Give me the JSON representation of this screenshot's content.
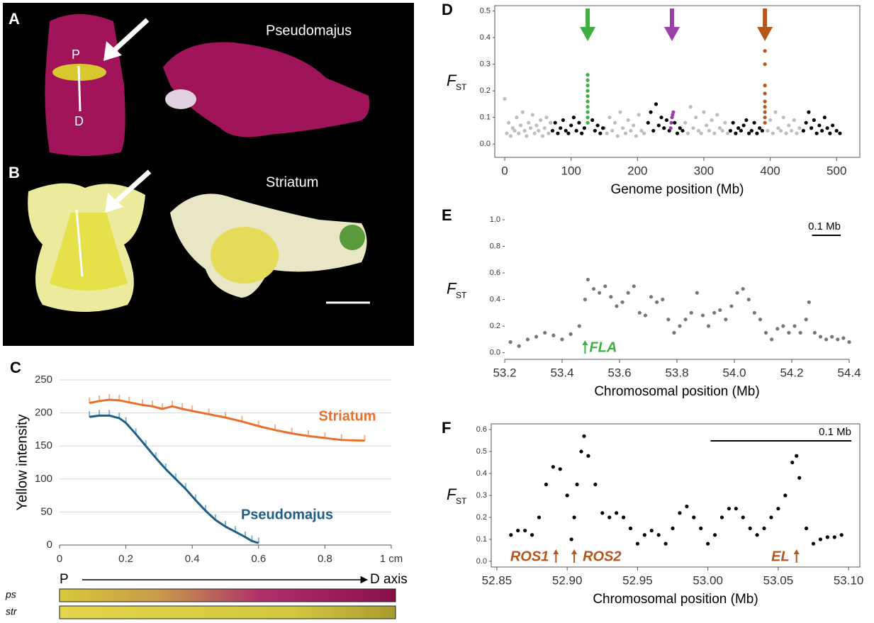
{
  "photo": {
    "panels": [
      "A",
      "B"
    ],
    "names": [
      "Pseudomajus",
      "Striatum"
    ],
    "axis_labels": [
      "P",
      "D"
    ]
  },
  "chart_data": [
    {
      "type": "line",
      "panel": "C",
      "ylabel": "Yellow intensity",
      "xlim": [
        0,
        1
      ],
      "ylim": [
        0,
        250
      ],
      "xticks": [
        0,
        0.2,
        0.4,
        0.6,
        0.8,
        {
          "value": 1,
          "label": "1 cm"
        }
      ],
      "yticks": [
        0,
        50,
        100,
        150,
        200,
        250
      ],
      "grid": true,
      "series": [
        {
          "name": "Striatum",
          "color": "#e8702f",
          "x": [
            0.09,
            0.12,
            0.15,
            0.18,
            0.21,
            0.25,
            0.28,
            0.31,
            0.34,
            0.37,
            0.4,
            0.45,
            0.5,
            0.55,
            0.6,
            0.65,
            0.7,
            0.75,
            0.8,
            0.85,
            0.92
          ],
          "values": [
            215,
            218,
            220,
            219,
            216,
            212,
            210,
            206,
            210,
            206,
            203,
            198,
            193,
            187,
            180,
            174,
            169,
            165,
            162,
            159,
            158
          ]
        },
        {
          "name": "Pseudomajus",
          "color": "#1f5f86",
          "x": [
            0.09,
            0.12,
            0.15,
            0.18,
            0.2,
            0.23,
            0.26,
            0.29,
            0.32,
            0.35,
            0.38,
            0.41,
            0.44,
            0.47,
            0.5,
            0.53,
            0.56,
            0.58,
            0.6
          ],
          "values": [
            194,
            196,
            196,
            192,
            185,
            168,
            150,
            132,
            115,
            100,
            85,
            68,
            52,
            38,
            28,
            20,
            12,
            6,
            3
          ]
        }
      ],
      "axis_strip": {
        "start": "P",
        "end": "D axis",
        "rows": [
          "ps",
          "str"
        ]
      }
    },
    {
      "type": "scatter",
      "panel": "D",
      "xlabel": "Genome position (Mb)",
      "ylabel": "F",
      "ylabel_sub": "ST",
      "xlim": [
        -15,
        535
      ],
      "ylim": [
        -0.05,
        0.52
      ],
      "xticks": [
        0,
        100,
        200,
        300,
        400,
        500
      ],
      "yticks": [
        {
          "value": 0,
          "label": "0.0"
        },
        0.1,
        0.2,
        0.3,
        0.4,
        0.5
      ],
      "series": [
        {
          "color": "#bdbdbd",
          "x": [
            0,
            3,
            6,
            9,
            12,
            15,
            18,
            21,
            24,
            27,
            30,
            33,
            36,
            39,
            42,
            45,
            48,
            51,
            54,
            57,
            60,
            63,
            66,
            69,
            150,
            154,
            158,
            162,
            166,
            170,
            174,
            178,
            182,
            186,
            190,
            194,
            198,
            202,
            206,
            210,
            272,
            276,
            280,
            284,
            288,
            292,
            296,
            300,
            304,
            308,
            312,
            316,
            320,
            324,
            328,
            332,
            336,
            396,
            400,
            404,
            408,
            412,
            416,
            420,
            424,
            428,
            432,
            436,
            440,
            444
          ],
          "values": [
            0.17,
            0.04,
            0.08,
            0.03,
            0.06,
            0.05,
            0.1,
            0.04,
            0.07,
            0.12,
            0.05,
            0.03,
            0.08,
            0.06,
            0.11,
            0.04,
            0.07,
            0.05,
            0.09,
            0.03,
            0.06,
            0.1,
            0.04,
            0.08,
            0.06,
            0.04,
            0.1,
            0.05,
            0.08,
            0.03,
            0.12,
            0.06,
            0.04,
            0.09,
            0.05,
            0.07,
            0.03,
            0.11,
            0.05,
            0.04,
            0.08,
            0.04,
            0.14,
            0.06,
            0.1,
            0.05,
            0.04,
            0.12,
            0.07,
            0.05,
            0.09,
            0.04,
            0.11,
            0.06,
            0.05,
            0.08,
            0.04,
            0.05,
            0.09,
            0.04,
            0.12,
            0.06,
            0.05,
            0.1,
            0.04,
            0.07,
            0.05,
            0.09,
            0.04,
            0.06
          ]
        },
        {
          "color": "#000000",
          "x": [
            72,
            76,
            80,
            84,
            88,
            92,
            96,
            100,
            104,
            108,
            112,
            116,
            120,
            132,
            136,
            140,
            144,
            148,
            216,
            220,
            224,
            228,
            232,
            236,
            240,
            244,
            248,
            256,
            260,
            264,
            268,
            340,
            344,
            348,
            352,
            356,
            360,
            364,
            368,
            372,
            376,
            380,
            384,
            388,
            450,
            454,
            458,
            462,
            466,
            470,
            474,
            478,
            482,
            486,
            490,
            494,
            500,
            505
          ],
          "values": [
            0.05,
            0.08,
            0.04,
            0.06,
            0.09,
            0.05,
            0.04,
            0.07,
            0.1,
            0.05,
            0.08,
            0.04,
            0.06,
            0.09,
            0.05,
            0.07,
            0.04,
            0.06,
            0.08,
            0.12,
            0.05,
            0.15,
            0.07,
            0.1,
            0.06,
            0.09,
            0.05,
            0.08,
            0.04,
            0.06,
            0.05,
            0.05,
            0.08,
            0.04,
            0.06,
            0.05,
            0.07,
            0.09,
            0.04,
            0.05,
            0.08,
            0.04,
            0.06,
            0.05,
            0.05,
            0.08,
            0.12,
            0.06,
            0.09,
            0.04,
            0.07,
            0.05,
            0.1,
            0.06,
            0.04,
            0.07,
            0.05,
            0.04
          ]
        },
        {
          "color": "#3cb043",
          "x": [
            125,
            125,
            125,
            125,
            125,
            125,
            125,
            125,
            125,
            125
          ],
          "values": [
            0.26,
            0.24,
            0.22,
            0.2,
            0.18,
            0.16,
            0.14,
            0.12,
            0.1,
            0.08
          ]
        },
        {
          "color": "#9b3fa8",
          "x": [
            250,
            251,
            252,
            253,
            254
          ],
          "values": [
            0.06,
            0.08,
            0.1,
            0.11,
            0.12
          ]
        },
        {
          "color": "#b5561c",
          "x": [
            392,
            392,
            392,
            392,
            392,
            392,
            392,
            392,
            392
          ],
          "values": [
            0.35,
            0.3,
            0.22,
            0.19,
            0.16,
            0.14,
            0.12,
            0.1,
            0.08
          ]
        }
      ],
      "arrows": [
        {
          "x": 125,
          "color": "#3cb043"
        },
        {
          "x": 252,
          "color": "#9b3fa8"
        },
        {
          "x": 392,
          "color": "#b5561c"
        }
      ]
    },
    {
      "type": "scatter",
      "panel": "E",
      "xlabel": "Chromosomal position (Mb)",
      "ylabel": "F",
      "ylabel_sub": "ST",
      "xlim": [
        53.2,
        54.4
      ],
      "ylim": [
        -0.05,
        1.0
      ],
      "xticks": [
        53.2,
        53.4,
        53.6,
        53.8,
        {
          "value": 54,
          "label": "54.0"
        },
        54.2,
        54.4
      ],
      "yticks": [
        {
          "value": 0,
          "label": "0.0"
        },
        0.2,
        0.4,
        0.6,
        0.8,
        {
          "value": 1,
          "label": "1.0"
        }
      ],
      "scale_bar": {
        "label": "0.1 Mb",
        "length": 0.1
      },
      "annotations": [
        {
          "text": "FLA",
          "x": 53.48,
          "color": "#3cb043"
        }
      ],
      "series": [
        {
          "color": "#777777",
          "x": [
            53.22,
            53.25,
            53.28,
            53.31,
            53.34,
            53.37,
            53.4,
            53.43,
            53.46,
            53.48,
            53.49,
            53.51,
            53.53,
            53.55,
            53.57,
            53.59,
            53.61,
            53.63,
            53.65,
            53.67,
            53.69,
            53.71,
            53.73,
            53.75,
            53.77,
            53.79,
            53.81,
            53.83,
            53.85,
            53.87,
            53.89,
            53.91,
            53.93,
            53.95,
            53.97,
            53.99,
            54.01,
            54.03,
            54.05,
            54.07,
            54.09,
            54.11,
            54.13,
            54.15,
            54.17,
            54.19,
            54.21,
            54.23,
            54.25,
            54.26,
            54.28,
            54.3,
            54.32,
            54.34,
            54.36,
            54.38,
            54.4
          ],
          "values": [
            0.08,
            0.05,
            0.1,
            0.12,
            0.15,
            0.13,
            0.1,
            0.14,
            0.2,
            0.4,
            0.55,
            0.48,
            0.45,
            0.5,
            0.42,
            0.35,
            0.38,
            0.45,
            0.5,
            0.3,
            0.28,
            0.42,
            0.38,
            0.4,
            0.25,
            0.15,
            0.2,
            0.25,
            0.3,
            0.45,
            0.28,
            0.2,
            0.3,
            0.32,
            0.25,
            0.35,
            0.45,
            0.48,
            0.4,
            0.3,
            0.25,
            0.15,
            0.1,
            0.18,
            0.2,
            0.15,
            0.2,
            0.15,
            0.25,
            0.38,
            0.15,
            0.12,
            0.1,
            0.12,
            0.1,
            0.11,
            0.08
          ]
        }
      ]
    },
    {
      "type": "scatter",
      "panel": "F",
      "xlabel": "Chromosomal position (Mb)",
      "ylabel": "F",
      "ylabel_sub": "ST",
      "xlim": [
        52.846,
        53.108
      ],
      "ylim": [
        -0.026,
        0.626
      ],
      "xticks": [
        52.85,
        {
          "value": 52.9,
          "label": "52.90"
        },
        52.95,
        {
          "value": 53,
          "label": "53.00"
        },
        53.05,
        {
          "value": 53.1,
          "label": "53.10"
        }
      ],
      "yticks": [
        {
          "value": 0,
          "label": "0.0"
        },
        0.1,
        0.2,
        0.3,
        0.4,
        0.5,
        0.6
      ],
      "scale_bar": {
        "label": "0.1 Mb",
        "length": 0.1
      },
      "annotations": [
        {
          "text": "ROS1",
          "x": 52.892,
          "color": "#b5561c"
        },
        {
          "text": "ROS2",
          "x": 52.905,
          "color": "#b5561c"
        },
        {
          "text": "EL",
          "x": 53.063,
          "color": "#b5561c"
        }
      ],
      "series": [
        {
          "color": "#000000",
          "x": [
            52.86,
            52.865,
            52.87,
            52.875,
            52.88,
            52.885,
            52.89,
            52.895,
            52.9,
            52.903,
            52.905,
            52.907,
            52.91,
            52.912,
            52.915,
            52.92,
            52.925,
            52.93,
            52.935,
            52.94,
            52.945,
            52.95,
            52.955,
            52.96,
            52.965,
            52.97,
            52.975,
            52.98,
            52.985,
            52.99,
            52.995,
            53.0,
            53.005,
            53.01,
            53.015,
            53.02,
            53.025,
            53.03,
            53.035,
            53.04,
            53.045,
            53.05,
            53.055,
            53.06,
            53.063,
            53.065,
            53.07,
            53.075,
            53.08,
            53.085,
            53.09,
            53.095
          ],
          "values": [
            0.12,
            0.14,
            0.14,
            0.12,
            0.2,
            0.35,
            0.43,
            0.42,
            0.3,
            0.1,
            0.2,
            0.35,
            0.5,
            0.57,
            0.48,
            0.35,
            0.22,
            0.2,
            0.22,
            0.2,
            0.15,
            0.08,
            0.12,
            0.14,
            0.12,
            0.08,
            0.15,
            0.22,
            0.25,
            0.2,
            0.15,
            0.08,
            0.12,
            0.2,
            0.24,
            0.24,
            0.2,
            0.15,
            0.12,
            0.15,
            0.2,
            0.24,
            0.3,
            0.45,
            0.48,
            0.38,
            0.15,
            0.08,
            0.1,
            0.11,
            0.11,
            0.12
          ]
        }
      ]
    }
  ]
}
